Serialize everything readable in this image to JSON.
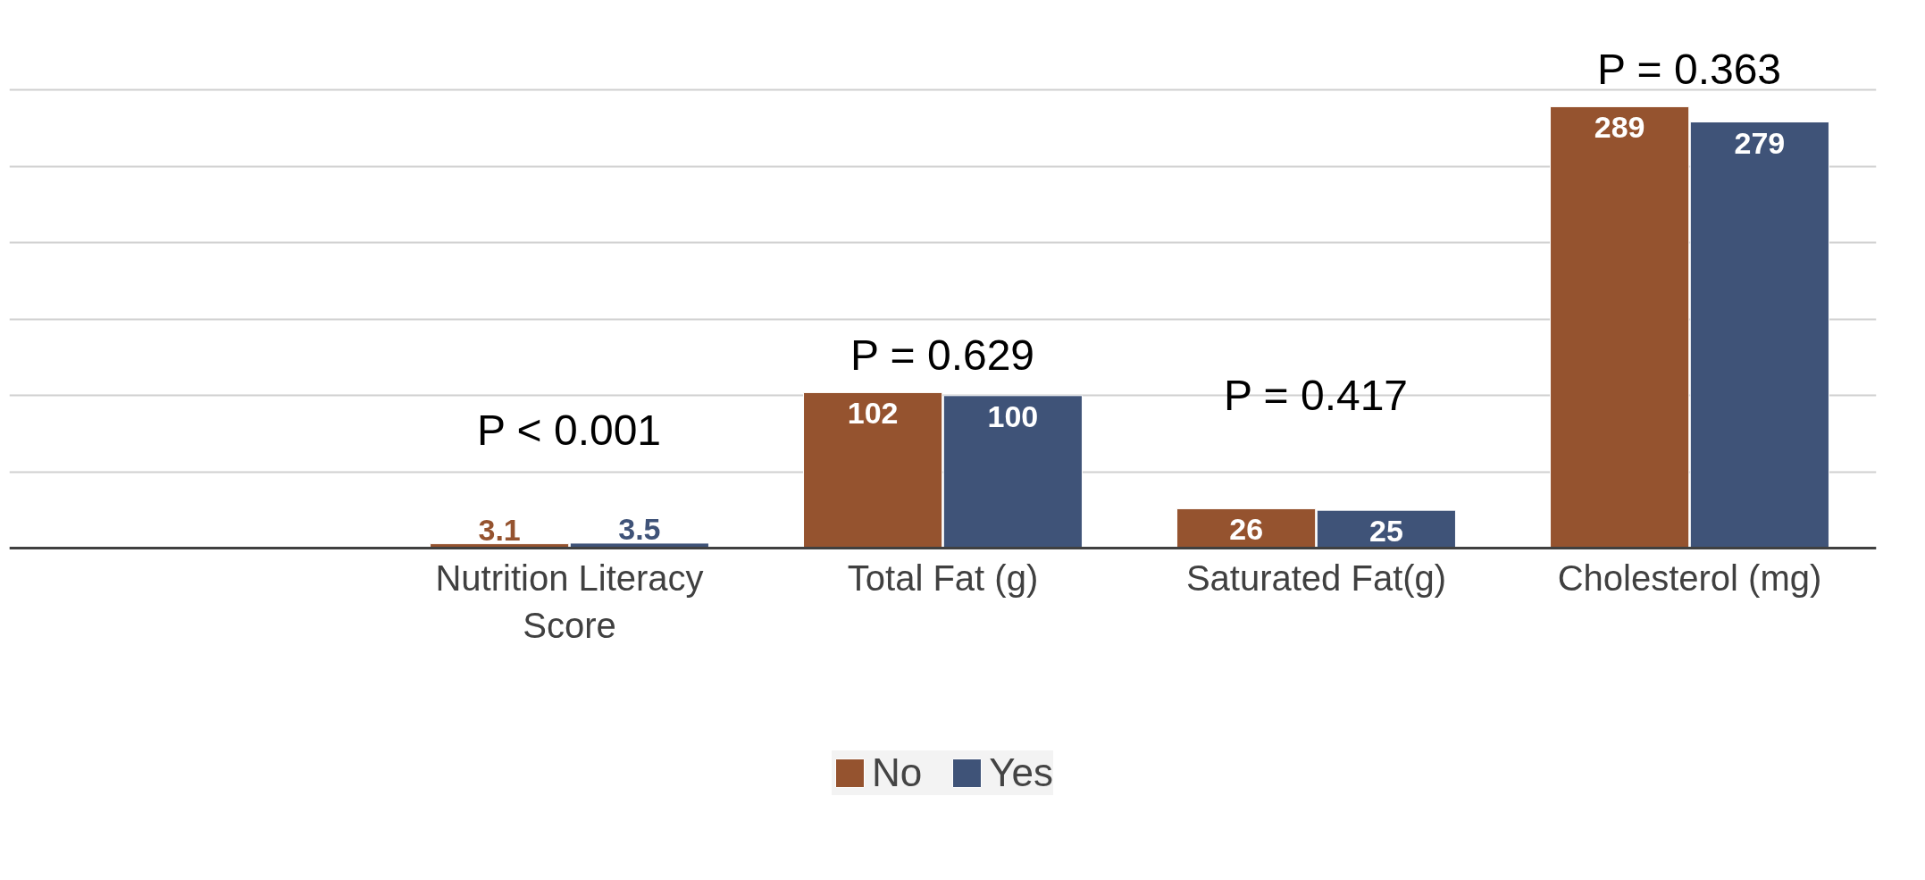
{
  "chart_data": {
    "type": "bar",
    "categories": [
      null,
      "Nutrition Literacy Score",
      "Total Fat (g)",
      "Saturated Fat(g)",
      "Cholesterol (mg)"
    ],
    "series": [
      {
        "name": "No",
        "color": "#95532f",
        "values": [
          null,
          3.1,
          102,
          26,
          289
        ]
      },
      {
        "name": "Yes",
        "color": "#3f5378",
        "values": [
          null,
          3.5,
          100,
          25,
          279
        ]
      }
    ],
    "tick_labels": "x",
    "grid": "y",
    "legend": "bottom",
    "data_labels": true,
    "annotations": [
      "P < 0.001",
      "P = 0.629",
      "P = 0.417",
      "P = 0.363"
    ]
  }
}
